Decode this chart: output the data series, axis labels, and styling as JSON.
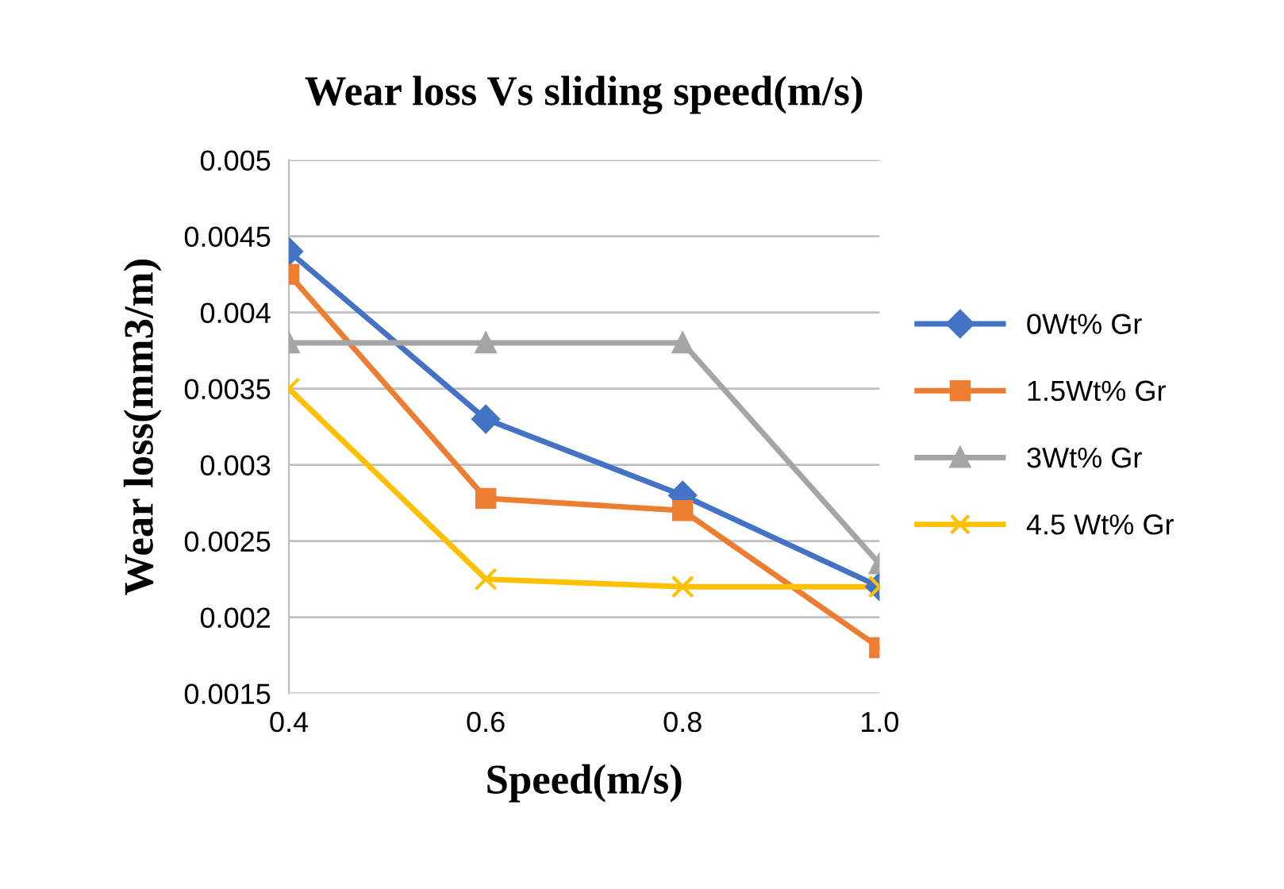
{
  "chart_data": {
    "type": "line",
    "title": "Wear loss Vs sliding speed(m/s)",
    "xlabel": "Speed(m/s)",
    "ylabel": "Wear loss(mm3/m)",
    "categories": [
      "0.4",
      "0.6",
      "0.8",
      "1.0"
    ],
    "series": [
      {
        "name": "0Wt% Gr",
        "color": "#4472c4",
        "marker": "diamond",
        "values": [
          0.0044,
          0.0033,
          0.0028,
          0.0022
        ]
      },
      {
        "name": "1.5Wt% Gr",
        "color": "#ed7d31",
        "marker": "square",
        "values": [
          0.00425,
          0.00278,
          0.0027,
          0.0018
        ]
      },
      {
        "name": "3Wt% Gr",
        "color": "#a5a5a5",
        "marker": "triangle",
        "values": [
          0.0038,
          0.0038,
          0.0038,
          0.00235
        ]
      },
      {
        "name": "4.5 Wt% Gr",
        "color": "#ffc000",
        "marker": "cross",
        "values": [
          0.0035,
          0.00225,
          0.0022,
          0.0022
        ]
      }
    ],
    "ylim": [
      0.0015,
      0.005
    ],
    "yticks": [
      0.0015,
      0.002,
      0.0025,
      0.003,
      0.0035,
      0.004,
      0.0045,
      0.005
    ],
    "grid": "y",
    "legend": "right",
    "line_style": "solid"
  }
}
